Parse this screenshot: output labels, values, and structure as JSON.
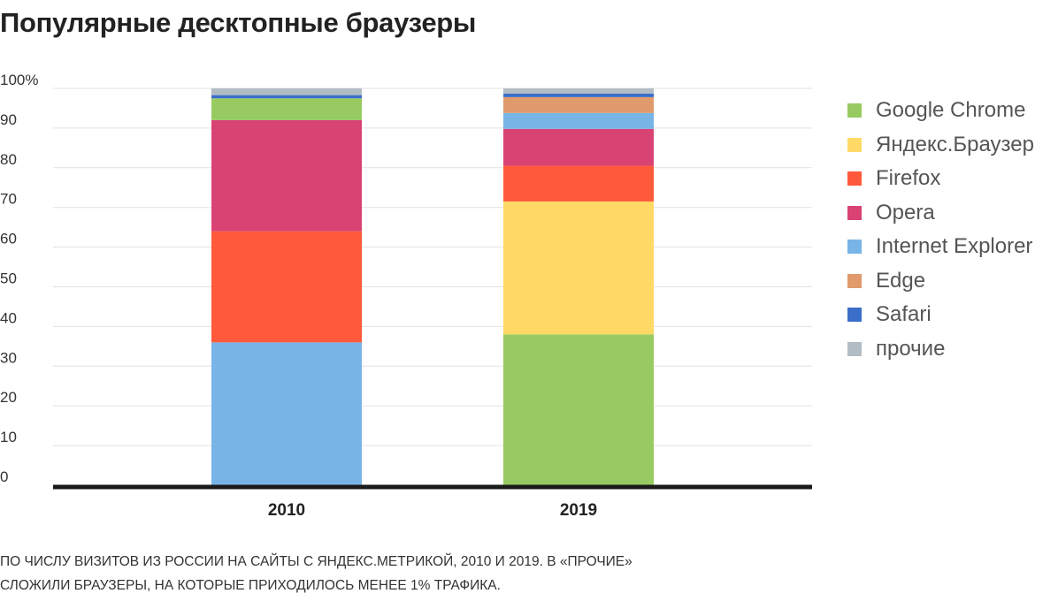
{
  "title": "Популярные десктопные браузеры",
  "footnote": {
    "line1": "ПО ЧИСЛУ ВИЗИТОВ ИЗ РОССИИ НА САЙТЫ С ЯНДЕКС.МЕТРИКОЙ, 2010 И 2019. В «ПРОЧИЕ»",
    "line2": "СЛОЖИЛИ БРАУЗЕРЫ, НА КОТОРЫЕ ПРИХОДИЛОСЬ МЕНЕЕ 1% ТРАФИКА."
  },
  "chart_data": {
    "type": "bar",
    "stacked": true,
    "categories": [
      "2010",
      "2019"
    ],
    "ylim": [
      0,
      100
    ],
    "yticks": [
      "0",
      "10",
      "20",
      "30",
      "40",
      "50",
      "60",
      "70",
      "80",
      "90",
      "100%"
    ],
    "grid": true,
    "legend_position": "right",
    "series": [
      {
        "name": "Google Chrome",
        "color": "#97cb62",
        "values": [
          5.5,
          38
        ]
      },
      {
        "name": "Яндекс.Браузер",
        "color": "#ffd966",
        "values": [
          0,
          33.5
        ]
      },
      {
        "name": "Firefox",
        "color": "#ff5a3c",
        "values": [
          28,
          9
        ]
      },
      {
        "name": "Opera",
        "color": "#d94374",
        "values": [
          28,
          9.3
        ]
      },
      {
        "name": "Internet Explorer",
        "color": "#78b4e6",
        "values": [
          36,
          4
        ]
      },
      {
        "name": "Edge",
        "color": "#e09a6b",
        "values": [
          0,
          4
        ]
      },
      {
        "name": "Safari",
        "color": "#3a6ec9",
        "values": [
          0.8,
          0.9
        ]
      },
      {
        "name": "прочие",
        "color": "#b2bcc4",
        "values": [
          1.7,
          1.3
        ]
      }
    ],
    "stack_order": [
      "Internet Explorer",
      "Firefox",
      "Opera",
      "Google Chrome",
      "Safari",
      "прочие"
    ],
    "stack_order_2019": [
      "Google Chrome",
      "Яндекс.Браузер",
      "Firefox",
      "Opera",
      "Internet Explorer",
      "Edge",
      "Safari",
      "прочие"
    ]
  }
}
